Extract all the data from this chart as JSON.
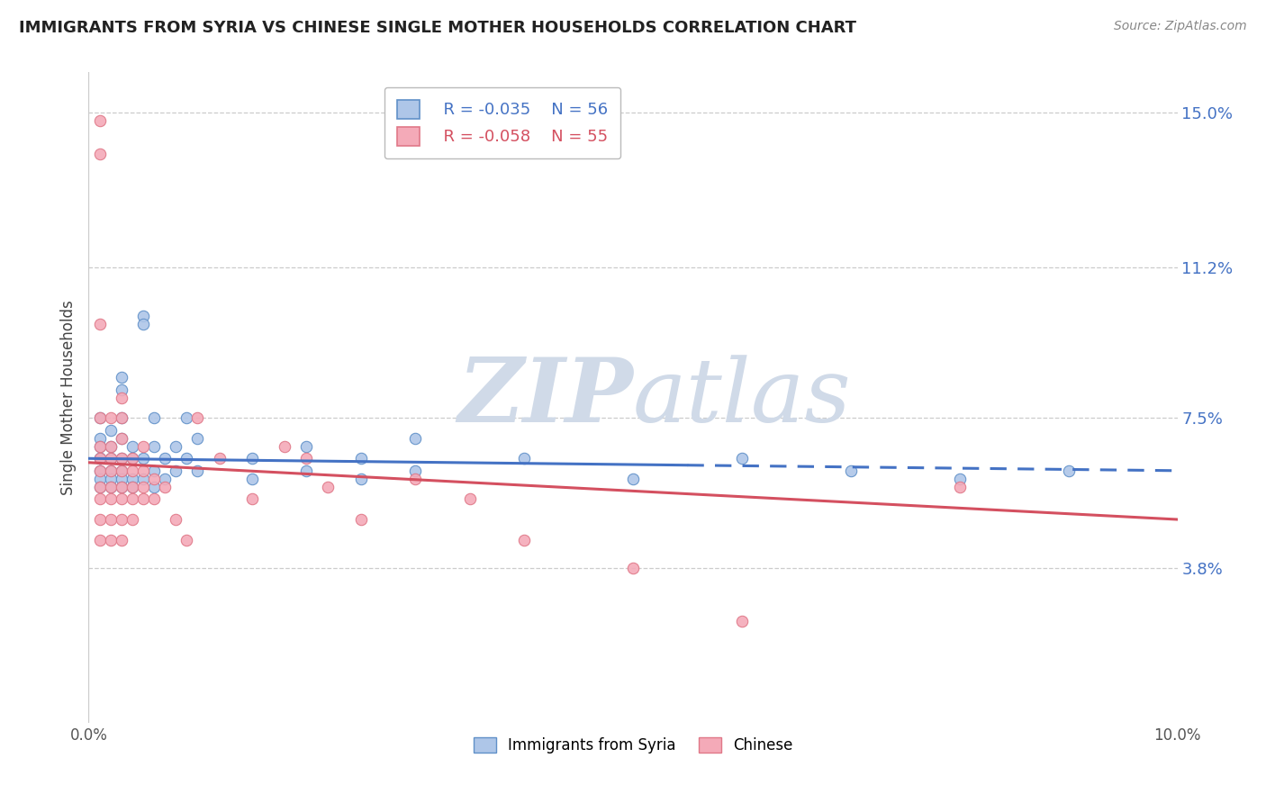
{
  "title": "IMMIGRANTS FROM SYRIA VS CHINESE SINGLE MOTHER HOUSEHOLDS CORRELATION CHART",
  "source": "Source: ZipAtlas.com",
  "ylabel": "Single Mother Households",
  "xmin": 0.0,
  "xmax": 0.1,
  "ymin": 0.0,
  "ymax": 0.16,
  "yticks": [
    0.038,
    0.075,
    0.112,
    0.15
  ],
  "ytick_labels": [
    "3.8%",
    "7.5%",
    "11.2%",
    "15.0%"
  ],
  "legend_blue_r": "R = -0.035",
  "legend_blue_n": "N = 56",
  "legend_pink_r": "R = -0.058",
  "legend_pink_n": "N = 55",
  "legend_blue_label": "Immigrants from Syria",
  "legend_pink_label": "Chinese",
  "blue_color": "#aec6e8",
  "pink_color": "#f4aab8",
  "blue_edge_color": "#6090c8",
  "pink_edge_color": "#e07888",
  "blue_line_color": "#4472c4",
  "pink_line_color": "#d45060",
  "watermark_color": "#d0dae8",
  "blue_line_start_y": 0.065,
  "blue_line_end_y": 0.062,
  "pink_line_start_y": 0.064,
  "pink_line_end_y": 0.05,
  "blue_scatter": [
    [
      0.001,
      0.075
    ],
    [
      0.001,
      0.07
    ],
    [
      0.001,
      0.065
    ],
    [
      0.001,
      0.065
    ],
    [
      0.001,
      0.068
    ],
    [
      0.001,
      0.062
    ],
    [
      0.001,
      0.06
    ],
    [
      0.001,
      0.058
    ],
    [
      0.002,
      0.072
    ],
    [
      0.002,
      0.068
    ],
    [
      0.002,
      0.065
    ],
    [
      0.002,
      0.062
    ],
    [
      0.002,
      0.06
    ],
    [
      0.002,
      0.058
    ],
    [
      0.003,
      0.085
    ],
    [
      0.003,
      0.082
    ],
    [
      0.003,
      0.075
    ],
    [
      0.003,
      0.07
    ],
    [
      0.003,
      0.065
    ],
    [
      0.003,
      0.062
    ],
    [
      0.003,
      0.06
    ],
    [
      0.003,
      0.058
    ],
    [
      0.004,
      0.068
    ],
    [
      0.004,
      0.065
    ],
    [
      0.004,
      0.06
    ],
    [
      0.004,
      0.058
    ],
    [
      0.005,
      0.1
    ],
    [
      0.005,
      0.098
    ],
    [
      0.005,
      0.065
    ],
    [
      0.005,
      0.06
    ],
    [
      0.006,
      0.075
    ],
    [
      0.006,
      0.068
    ],
    [
      0.006,
      0.062
    ],
    [
      0.006,
      0.058
    ],
    [
      0.007,
      0.065
    ],
    [
      0.007,
      0.06
    ],
    [
      0.008,
      0.068
    ],
    [
      0.008,
      0.062
    ],
    [
      0.009,
      0.075
    ],
    [
      0.009,
      0.065
    ],
    [
      0.01,
      0.07
    ],
    [
      0.01,
      0.062
    ],
    [
      0.015,
      0.065
    ],
    [
      0.015,
      0.06
    ],
    [
      0.02,
      0.068
    ],
    [
      0.02,
      0.062
    ],
    [
      0.025,
      0.065
    ],
    [
      0.025,
      0.06
    ],
    [
      0.03,
      0.07
    ],
    [
      0.03,
      0.062
    ],
    [
      0.04,
      0.065
    ],
    [
      0.05,
      0.06
    ],
    [
      0.06,
      0.065
    ],
    [
      0.07,
      0.062
    ],
    [
      0.08,
      0.06
    ],
    [
      0.09,
      0.062
    ]
  ],
  "pink_scatter": [
    [
      0.001,
      0.148
    ],
    [
      0.001,
      0.14
    ],
    [
      0.001,
      0.098
    ],
    [
      0.001,
      0.075
    ],
    [
      0.001,
      0.068
    ],
    [
      0.001,
      0.065
    ],
    [
      0.001,
      0.062
    ],
    [
      0.001,
      0.058
    ],
    [
      0.001,
      0.055
    ],
    [
      0.001,
      0.05
    ],
    [
      0.001,
      0.045
    ],
    [
      0.002,
      0.075
    ],
    [
      0.002,
      0.068
    ],
    [
      0.002,
      0.065
    ],
    [
      0.002,
      0.062
    ],
    [
      0.002,
      0.058
    ],
    [
      0.002,
      0.055
    ],
    [
      0.002,
      0.05
    ],
    [
      0.002,
      0.045
    ],
    [
      0.003,
      0.08
    ],
    [
      0.003,
      0.075
    ],
    [
      0.003,
      0.07
    ],
    [
      0.003,
      0.065
    ],
    [
      0.003,
      0.062
    ],
    [
      0.003,
      0.058
    ],
    [
      0.003,
      0.055
    ],
    [
      0.003,
      0.05
    ],
    [
      0.003,
      0.045
    ],
    [
      0.004,
      0.065
    ],
    [
      0.004,
      0.062
    ],
    [
      0.004,
      0.058
    ],
    [
      0.004,
      0.055
    ],
    [
      0.004,
      0.05
    ],
    [
      0.005,
      0.068
    ],
    [
      0.005,
      0.062
    ],
    [
      0.005,
      0.058
    ],
    [
      0.005,
      0.055
    ],
    [
      0.006,
      0.06
    ],
    [
      0.006,
      0.055
    ],
    [
      0.007,
      0.058
    ],
    [
      0.008,
      0.05
    ],
    [
      0.009,
      0.045
    ],
    [
      0.01,
      0.075
    ],
    [
      0.012,
      0.065
    ],
    [
      0.015,
      0.055
    ],
    [
      0.018,
      0.068
    ],
    [
      0.02,
      0.065
    ],
    [
      0.022,
      0.058
    ],
    [
      0.025,
      0.05
    ],
    [
      0.03,
      0.06
    ],
    [
      0.035,
      0.055
    ],
    [
      0.04,
      0.045
    ],
    [
      0.05,
      0.038
    ],
    [
      0.06,
      0.025
    ],
    [
      0.08,
      0.058
    ]
  ]
}
